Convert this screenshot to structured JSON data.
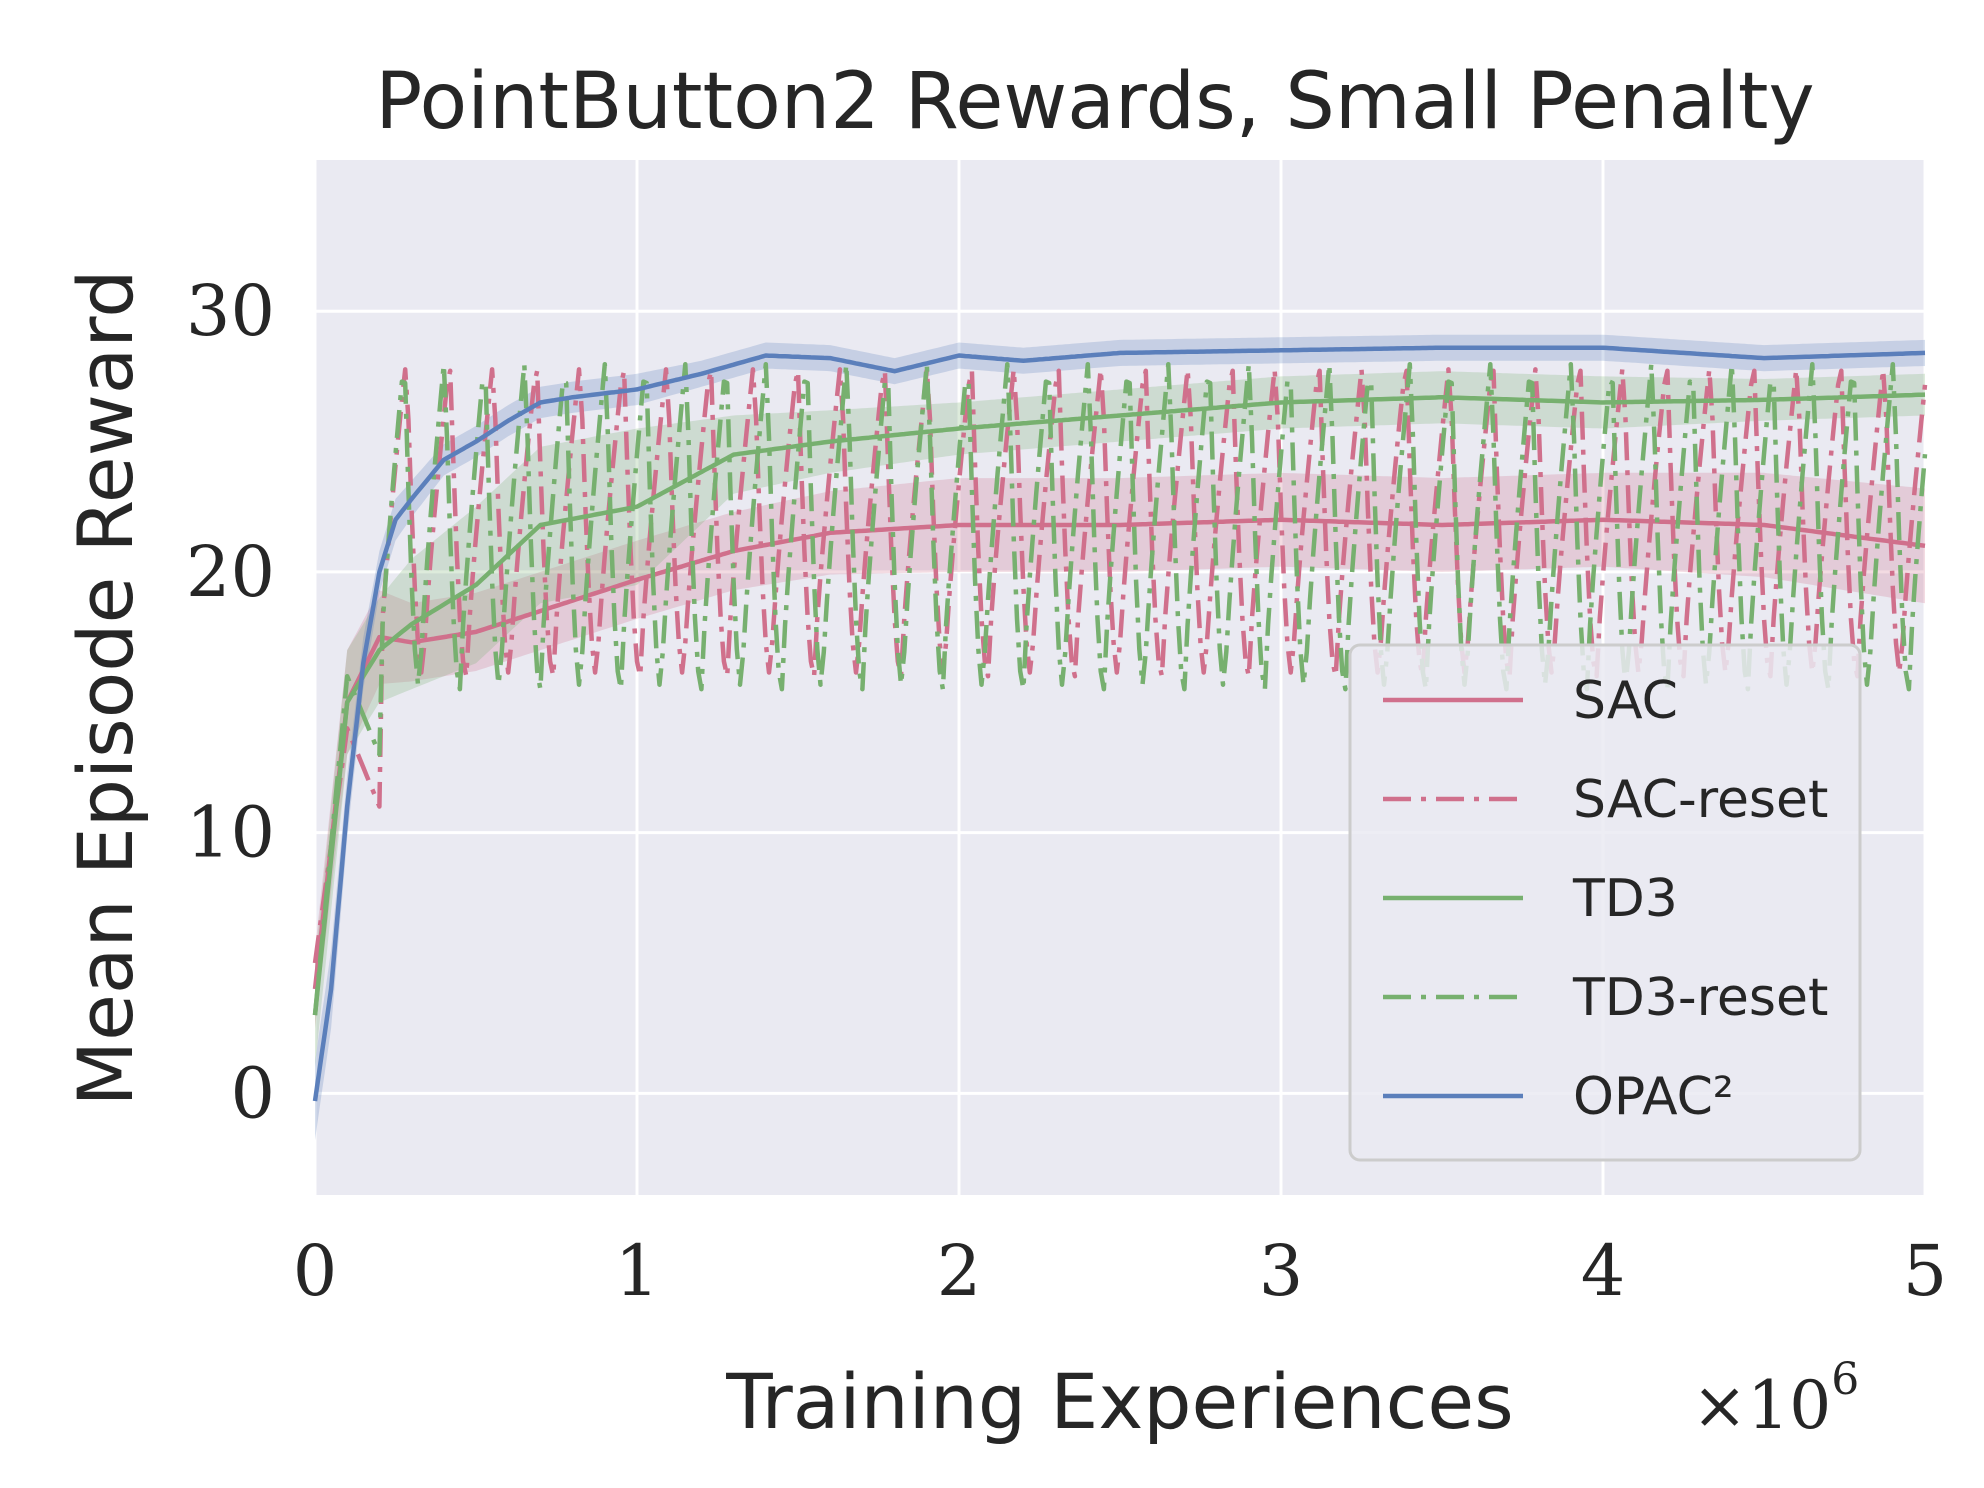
{
  "chart_data": {
    "type": "line",
    "title": "PointButton2 Rewards, Small Penalty",
    "xlabel": "Training Experiences",
    "ylabel": "Mean Episode Reward",
    "x_multiplier_label": "×10",
    "x_multiplier_exponent": "6",
    "xlim": [
      0,
      5
    ],
    "ylim": [
      -3.9,
      35.8
    ],
    "xticks": [
      0,
      1,
      2,
      3,
      4,
      5
    ],
    "xtick_labels": [
      "0",
      "1",
      "2",
      "3",
      "4",
      "5"
    ],
    "yticks": [
      0,
      10,
      20,
      30
    ],
    "ytick_labels": [
      "0",
      "10",
      "20",
      "30"
    ],
    "grid": true,
    "legend_position": "lower-right",
    "series": [
      {
        "name": "SAC",
        "color": "#d0708c",
        "dash": "solid",
        "x": [
          0,
          0.1,
          0.2,
          0.3,
          0.5,
          0.7,
          1.0,
          1.3,
          1.6,
          2.0,
          2.5,
          3.0,
          3.5,
          4.0,
          4.5,
          5.0
        ],
        "y": [
          4,
          15,
          17.5,
          17.3,
          17.7,
          18.5,
          19.7,
          20.8,
          21.5,
          21.8,
          21.8,
          22,
          21.8,
          22,
          21.8,
          21
        ],
        "band": [
          1.5,
          2,
          1.8,
          1.5,
          1.5,
          1.5,
          1.5,
          1.5,
          1.6,
          1.8,
          1.8,
          1.8,
          1.8,
          1.8,
          2,
          2.2
        ]
      },
      {
        "name": "SAC-reset",
        "color": "#d0708c",
        "dash": "dashdot",
        "oscillation": {
          "start": 0.2,
          "period": 0.135,
          "high": 28.2,
          "low": 16
        },
        "x": [
          0,
          0.1,
          0.2,
          0.3
        ],
        "y": [
          5,
          14,
          11,
          24
        ]
      },
      {
        "name": "TD3",
        "color": "#77b06f",
        "dash": "solid",
        "x": [
          0,
          0.1,
          0.2,
          0.3,
          0.5,
          0.7,
          1.0,
          1.3,
          1.6,
          2.0,
          2.5,
          3.0,
          3.5,
          4.0,
          4.5,
          5.0
        ],
        "y": [
          3,
          15,
          17,
          18,
          19.5,
          21.8,
          22.5,
          24.5,
          25,
          25.5,
          26,
          26.5,
          26.7,
          26.5,
          26.6,
          26.8
        ],
        "band": [
          2,
          2,
          2,
          2.5,
          3,
          3,
          3,
          1.5,
          1.2,
          1,
          1,
          1,
          1,
          1,
          0.8,
          0.8
        ]
      },
      {
        "name": "TD3-reset",
        "color": "#77b06f",
        "dash": "dashdot",
        "oscillation": {
          "start": 0.2,
          "period": 0.125,
          "high": 28.3,
          "low": 15.5
        },
        "x": [
          0,
          0.1,
          0.2,
          0.3
        ],
        "y": [
          3,
          16,
          13,
          22
        ]
      },
      {
        "name": "OPAC²",
        "color": "#5b7fbb",
        "dash": "solid",
        "x": [
          0,
          0.05,
          0.1,
          0.15,
          0.2,
          0.25,
          0.3,
          0.4,
          0.5,
          0.6,
          0.7,
          0.8,
          1.0,
          1.2,
          1.4,
          1.6,
          1.8,
          2.0,
          2.2,
          2.5,
          3.0,
          3.5,
          4.0,
          4.5,
          5.0
        ],
        "y": [
          -0.3,
          4,
          11,
          16.5,
          20,
          22,
          22.8,
          24.3,
          25,
          25.8,
          26.5,
          26.7,
          27,
          27.6,
          28.3,
          28.2,
          27.7,
          28.3,
          28.1,
          28.4,
          28.5,
          28.6,
          28.6,
          28.2,
          28.4
        ],
        "band": [
          1.5,
          1.5,
          1.2,
          1,
          0.8,
          0.8,
          0.7,
          0.6,
          0.6,
          0.6,
          0.6,
          0.6,
          0.6,
          0.5,
          0.5,
          0.5,
          0.5,
          0.5,
          0.5,
          0.5,
          0.5,
          0.5,
          0.5,
          0.5,
          0.5
        ]
      }
    ]
  }
}
